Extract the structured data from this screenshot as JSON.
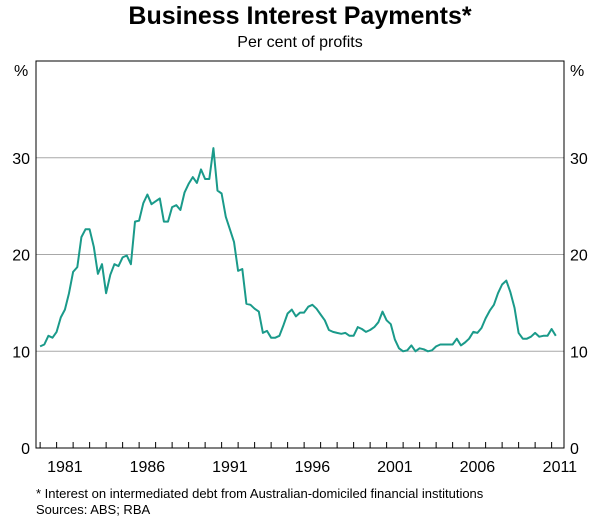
{
  "header": {
    "title": "Business Interest Payments*",
    "subtitle": "Per cent of profits"
  },
  "footer": {
    "footnote": "*   Interest on intermediated debt from Australian-domiciled financial institutions",
    "sources": "Sources: ABS; RBA"
  },
  "chart_data": {
    "type": "line",
    "title": "Business Interest Payments*",
    "subtitle": "Per cent of profits",
    "y_unit_left": "%",
    "y_unit_right": "%",
    "ylim": [
      0,
      40
    ],
    "yticks": [
      0,
      10,
      20,
      30
    ],
    "xlim": [
      1979.75,
      2011.75
    ],
    "xticks": [
      1981,
      1986,
      1991,
      1996,
      2001,
      2006,
      2011
    ],
    "grid": true,
    "line_color": "#1a9a8a",
    "series": [
      {
        "x": [
          1980.0,
          1980.25,
          1980.5,
          1980.75,
          1981.0,
          1981.25,
          1981.5,
          1981.75,
          1982.0,
          1982.25,
          1982.5,
          1982.75,
          1983.0,
          1983.25,
          1983.5,
          1983.75,
          1984.0,
          1984.25,
          1984.5,
          1984.75,
          1985.0,
          1985.25,
          1985.5,
          1985.75,
          1986.0,
          1986.25,
          1986.5,
          1986.75,
          1987.0,
          1987.25,
          1987.5,
          1987.75,
          1988.0,
          1988.25,
          1988.5,
          1988.75,
          1989.0,
          1989.25,
          1989.5,
          1989.75,
          1990.0,
          1990.25,
          1990.5,
          1990.75,
          1991.0,
          1991.25,
          1991.5,
          1991.75,
          1992.0,
          1992.25,
          1992.5,
          1992.75,
          1993.0,
          1993.25,
          1993.5,
          1993.75,
          1994.0,
          1994.25,
          1994.5,
          1994.75,
          1995.0,
          1995.25,
          1995.5,
          1995.75,
          1996.0,
          1996.25,
          1996.5,
          1996.75,
          1997.0,
          1997.25,
          1997.5,
          1997.75,
          1998.0,
          1998.25,
          1998.5,
          1998.75,
          1999.0,
          1999.25,
          1999.5,
          1999.75,
          2000.0,
          2000.25,
          2000.5,
          2000.75,
          2001.0,
          2001.25,
          2001.5,
          2001.75,
          2002.0,
          2002.25,
          2002.5,
          2002.75,
          2003.0,
          2003.25,
          2003.5,
          2003.75,
          2004.0,
          2004.25,
          2004.5,
          2004.75,
          2005.0,
          2005.25,
          2005.5,
          2005.75,
          2006.0,
          2006.25,
          2006.5,
          2006.75,
          2007.0,
          2007.25,
          2007.5,
          2007.75,
          2008.0,
          2008.25,
          2008.5,
          2008.75,
          2009.0,
          2009.25,
          2009.5,
          2009.75,
          2010.0,
          2010.25,
          2010.5,
          2010.75,
          2011.0,
          2011.25
        ],
        "y": [
          10.5,
          10.7,
          11.6,
          11.4,
          12.0,
          13.5,
          14.3,
          16.0,
          18.2,
          18.7,
          21.8,
          22.6,
          22.6,
          20.8,
          18.0,
          19.0,
          16.0,
          17.9,
          19.0,
          18.8,
          19.7,
          19.9,
          19.0,
          23.4,
          23.5,
          25.3,
          26.2,
          25.2,
          25.5,
          25.8,
          23.4,
          23.4,
          24.9,
          25.1,
          24.6,
          26.4,
          27.3,
          28.0,
          27.4,
          28.8,
          27.8,
          27.8,
          31.0,
          26.6,
          26.3,
          23.9,
          22.6,
          21.3,
          18.3,
          18.5,
          14.9,
          14.8,
          14.4,
          14.1,
          11.9,
          12.1,
          11.4,
          11.4,
          11.6,
          12.7,
          13.9,
          14.3,
          13.6,
          14.0,
          14.0,
          14.6,
          14.8,
          14.4,
          13.8,
          13.2,
          12.2,
          12.0,
          11.9,
          11.8,
          11.9,
          11.6,
          11.6,
          12.5,
          12.3,
          12.0,
          12.2,
          12.5,
          13.0,
          14.1,
          13.2,
          12.8,
          11.2,
          10.3,
          10.0,
          10.1,
          10.6,
          10.0,
          10.3,
          10.2,
          10.0,
          10.1,
          10.5,
          10.7,
          10.7,
          10.7,
          10.7,
          11.3,
          10.6,
          10.9,
          11.3,
          12.0,
          11.9,
          12.4,
          13.4,
          14.2,
          14.8,
          16.0,
          16.9,
          17.3,
          16.1,
          14.5,
          11.9,
          11.3,
          11.3,
          11.5,
          11.9,
          11.5,
          11.6,
          11.6,
          12.3,
          11.6
        ]
      }
    ]
  }
}
